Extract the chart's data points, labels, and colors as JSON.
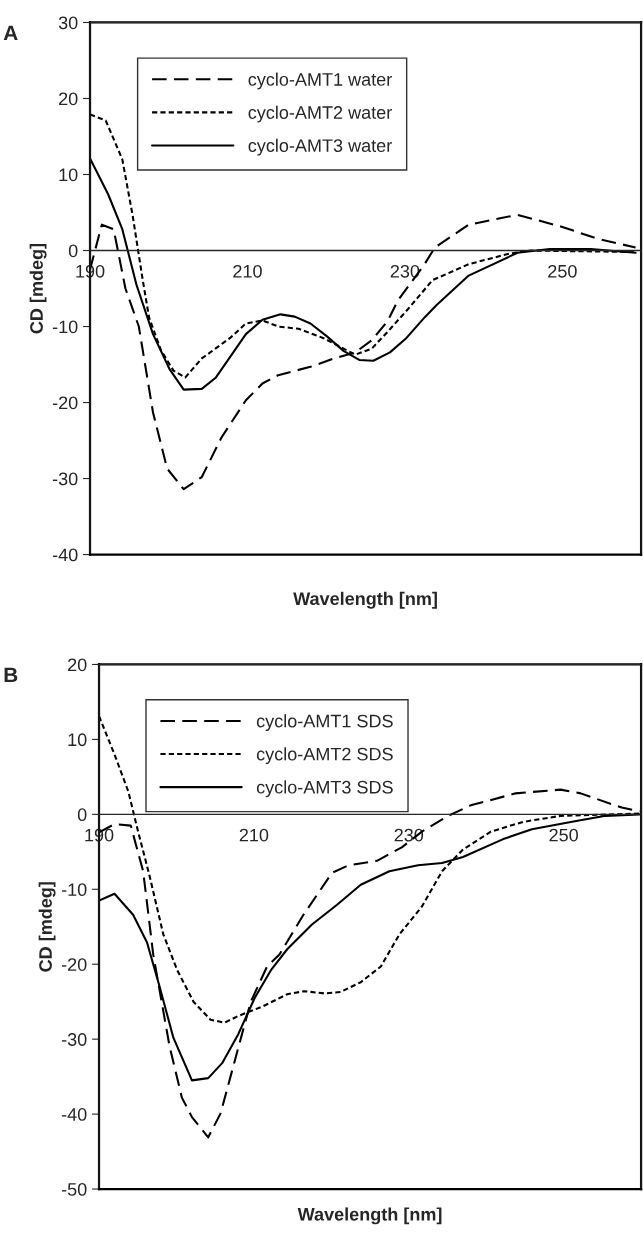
{
  "chart_data": [
    {
      "type": "line",
      "annotations": [
        "A"
      ],
      "xlabel": "Wavelength [nm]",
      "ylabel": "CD [mdeg]",
      "xlim": [
        190,
        260
      ],
      "xticks": [
        190,
        210,
        230,
        250
      ],
      "ylim": [
        -40,
        30
      ],
      "yticks": [
        -40,
        -30,
        -20,
        -10,
        0,
        10,
        20,
        30
      ],
      "grid": false,
      "legend": "top left",
      "series": [
        {
          "name": "cyclo-AMT1 water",
          "color": "#000000",
          "line_style": "dashed",
          "x": [
            190,
            191.5,
            193,
            194.5,
            196.2,
            198,
            199.8,
            201.9,
            204.2,
            206.7,
            209.8,
            211.9,
            213.9,
            218,
            221,
            223.7,
            225.8,
            227.8,
            229.1,
            232.5,
            233.8,
            238.1,
            244.3,
            250,
            254.6,
            259.3
          ],
          "values": [
            -2.5,
            3.4,
            2.8,
            -5,
            -10,
            -21.3,
            -28.7,
            -31.4,
            -29.8,
            -24.6,
            -19.7,
            -17.5,
            -16.4,
            -15.3,
            -14.2,
            -13.4,
            -11.8,
            -9.3,
            -6.6,
            -1.8,
            0.4,
            3.4,
            4.7,
            3.1,
            1.5,
            0.4
          ]
        },
        {
          "name": "cyclo-AMT2 water",
          "color": "#000000",
          "line_style": "dotted",
          "x": [
            190,
            192,
            194.1,
            195.4,
            196.7,
            197.5,
            199,
            200.6,
            202.1,
            204.2,
            207.8,
            209.8,
            211.9,
            213.9,
            216.5,
            219.6,
            222.2,
            223.7,
            225.8,
            227.8,
            230.4,
            233.5,
            238.1,
            243.3,
            245.9,
            259.3
          ],
          "values": [
            17.9,
            17.1,
            12,
            4.7,
            -3.9,
            -8.8,
            -13.1,
            -15.8,
            -16.7,
            -14.2,
            -11.5,
            -9.6,
            -9.2,
            -10,
            -10.3,
            -11.5,
            -12.9,
            -13.7,
            -12.9,
            -10.7,
            -7.7,
            -3.9,
            -1.8,
            -0.4,
            0,
            -0.2
          ]
        },
        {
          "name": "cyclo-AMT3 water",
          "color": "#000000",
          "line_style": "solid",
          "x": [
            190,
            192.3,
            194.1,
            195.9,
            198,
            200.1,
            201.9,
            204.2,
            206,
            209.8,
            211.9,
            214.2,
            216,
            218,
            220.1,
            222.2,
            224.2,
            226,
            228.1,
            230.2,
            232.5,
            234,
            238.1,
            244.3,
            248.4,
            253.6,
            259.3
          ],
          "values": [
            12.1,
            7.4,
            2.8,
            -4.5,
            -11,
            -15.6,
            -18.3,
            -18.2,
            -16.7,
            -11,
            -9.1,
            -8.4,
            -8.7,
            -9.6,
            -11.3,
            -13.2,
            -14.4,
            -14.5,
            -13.4,
            -11.5,
            -8.8,
            -7.2,
            -3.3,
            -0.3,
            0.2,
            0.2,
            -0.3
          ]
        }
      ]
    },
    {
      "type": "line",
      "annotations": [
        "B"
      ],
      "xlabel": "Wavelength [nm]",
      "ylabel": "CD [mdeg]",
      "xlim": [
        190,
        260
      ],
      "xticks": [
        190,
        210,
        230,
        250
      ],
      "ylim": [
        -50,
        20
      ],
      "yticks": [
        -50,
        -40,
        -30,
        -20,
        -10,
        0,
        10,
        20
      ],
      "grid": false,
      "legend": "top left",
      "series": [
        {
          "name": "cyclo-AMT1 SDS",
          "color": "#000000",
          "line_style": "dashed",
          "x": [
            190,
            192,
            194.1,
            195.7,
            197,
            199.1,
            200.7,
            202,
            204.1,
            205.7,
            207.5,
            209.6,
            211.7,
            213.3,
            216.4,
            220.1,
            222.2,
            225.9,
            229.1,
            231.7,
            235.1,
            238,
            243.8,
            249.6,
            252.2,
            257.5,
            259.8
          ],
          "values": [
            -2.4,
            -1.3,
            -1.5,
            -7.6,
            -18.7,
            -30.9,
            -37.8,
            -40.4,
            -43.1,
            -39.9,
            -33,
            -25,
            -20.3,
            -18.7,
            -13.4,
            -7.8,
            -6.8,
            -6.2,
            -4.4,
            -2.3,
            -0.2,
            1.2,
            2.8,
            3.3,
            2.8,
            0.9,
            0.4
          ]
        },
        {
          "name": "cyclo-AMT2 SDS",
          "color": "#000000",
          "line_style": "dotted",
          "x": [
            190,
            192,
            193.8,
            194.9,
            196.5,
            198.3,
            200.1,
            202.2,
            204.4,
            206.2,
            208,
            211.2,
            214.3,
            216.5,
            219.1,
            221.2,
            223.8,
            226.4,
            228.8,
            231.7,
            234.3,
            237,
            240.6,
            244.8,
            249.6,
            259.8
          ],
          "values": [
            13.1,
            8,
            3,
            -1.7,
            -8.1,
            -16,
            -20.8,
            -25,
            -27.4,
            -27.8,
            -26.9,
            -25.6,
            -24,
            -23.6,
            -23.9,
            -23.7,
            -22.4,
            -20.3,
            -16,
            -12.3,
            -7.6,
            -4.7,
            -2.3,
            -1,
            -0.2,
            0.1
          ]
        },
        {
          "name": "cyclo-AMT3 SDS",
          "color": "#000000",
          "line_style": "solid",
          "x": [
            190,
            192,
            194.4,
            196.2,
            197.8,
            199.6,
            202,
            204.1,
            205.9,
            208,
            210.1,
            212.2,
            214.3,
            217.5,
            220.7,
            223.8,
            227.5,
            231.2,
            234.3,
            237,
            242.2,
            245.9,
            251.1,
            255.4,
            259.8
          ],
          "values": [
            -11.5,
            -10.6,
            -13.4,
            -17.1,
            -22.9,
            -29.8,
            -35.5,
            -35.2,
            -33.2,
            -29.3,
            -24.5,
            -20.8,
            -18,
            -14.7,
            -12.1,
            -9.4,
            -7.6,
            -6.8,
            -6.5,
            -5.7,
            -3.3,
            -2,
            -1,
            -0.2,
            0
          ]
        }
      ]
    }
  ]
}
